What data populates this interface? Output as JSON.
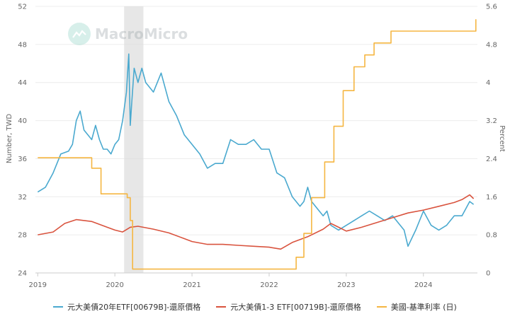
{
  "watermark": {
    "text": "MacroMicro"
  },
  "colors": {
    "etf_20y": "#4aa9cf",
    "etf_1_3y": "#d9533e",
    "fed_rate": "#f5b642",
    "shade": "#dddddd",
    "grid": "#ececec"
  },
  "chart_data": {
    "type": "line",
    "ylabel_left": "Number, TWD",
    "ylabel_right": "Percent",
    "ylim_left": [
      24,
      52
    ],
    "ylim_right": [
      0,
      5.6
    ],
    "yticks_left": [
      "24",
      "28",
      "32",
      "36",
      "40",
      "44",
      "48",
      "52"
    ],
    "yticks_right": [
      "0",
      "0.8",
      "1.6",
      "2.4",
      "3.2",
      "4",
      "4.8",
      "5.6"
    ],
    "xlim": [
      2018.97,
      2024.7
    ],
    "xticks": [
      {
        "label": "2019",
        "value": 2019
      },
      {
        "label": "2020",
        "value": 2020
      },
      {
        "label": "2021",
        "value": 2021
      },
      {
        "label": "2022",
        "value": 2022
      },
      {
        "label": "2023",
        "value": 2023
      },
      {
        "label": "2024",
        "value": 2024
      }
    ],
    "grid": "horizontal",
    "legend_position": "bottom",
    "shaded_region": [
      2020.12,
      2020.37
    ],
    "series": [
      {
        "name": "元大美債20年ETF[00679B]-還原價格",
        "axis": "left",
        "color": "#4aa9cf",
        "x": [
          2019.0,
          2019.1,
          2019.2,
          2019.3,
          2019.4,
          2019.45,
          2019.5,
          2019.55,
          2019.6,
          2019.65,
          2019.7,
          2019.75,
          2019.8,
          2019.85,
          2019.9,
          2019.95,
          2020.0,
          2020.05,
          2020.1,
          2020.15,
          2020.18,
          2020.2,
          2020.22,
          2020.25,
          2020.3,
          2020.35,
          2020.4,
          2020.5,
          2020.6,
          2020.7,
          2020.8,
          2020.9,
          2021.0,
          2021.1,
          2021.2,
          2021.3,
          2021.4,
          2021.5,
          2021.6,
          2021.7,
          2021.8,
          2021.9,
          2022.0,
          2022.1,
          2022.2,
          2022.3,
          2022.4,
          2022.45,
          2022.5,
          2022.55,
          2022.6,
          2022.7,
          2022.75,
          2022.8,
          2022.9,
          2023.0,
          2023.1,
          2023.2,
          2023.3,
          2023.4,
          2023.5,
          2023.6,
          2023.7,
          2023.75,
          2023.8,
          2023.9,
          2024.0,
          2024.1,
          2024.2,
          2024.3,
          2024.4,
          2024.5,
          2024.6,
          2024.65
        ],
        "y": [
          32.5,
          33.0,
          34.5,
          36.5,
          36.8,
          37.5,
          40.0,
          41.0,
          39.0,
          38.5,
          38.0,
          39.5,
          38.0,
          37.0,
          37.0,
          36.5,
          37.5,
          38.0,
          40.0,
          43.0,
          47.0,
          39.5,
          42.0,
          45.5,
          44.0,
          45.5,
          44.0,
          43.0,
          45.0,
          42.0,
          40.5,
          38.5,
          37.5,
          36.5,
          35.0,
          35.5,
          35.5,
          38.0,
          37.5,
          37.5,
          38.0,
          37.0,
          37.0,
          34.5,
          34.0,
          32.0,
          31.0,
          31.5,
          33.0,
          31.5,
          31.0,
          30.0,
          30.5,
          29.0,
          28.5,
          29.0,
          29.5,
          30.0,
          30.5,
          30.0,
          29.5,
          30.0,
          29.0,
          28.5,
          26.8,
          28.5,
          30.5,
          29.0,
          28.5,
          29.0,
          30.0,
          30.0,
          31.5,
          31.2
        ]
      },
      {
        "name": "元大美債1-3 ETF[00719B]-還原價格",
        "axis": "left",
        "color": "#d9533e",
        "x": [
          2019.0,
          2019.2,
          2019.35,
          2019.5,
          2019.7,
          2019.9,
          2020.0,
          2020.1,
          2020.2,
          2020.3,
          2020.5,
          2020.7,
          2020.9,
          2021.0,
          2021.2,
          2021.4,
          2021.6,
          2021.8,
          2022.0,
          2022.15,
          2022.3,
          2022.5,
          2022.7,
          2022.8,
          2022.9,
          2023.0,
          2023.2,
          2023.4,
          2023.6,
          2023.8,
          2024.0,
          2024.2,
          2024.4,
          2024.5,
          2024.6,
          2024.65
        ],
        "y": [
          28.0,
          28.3,
          29.2,
          29.6,
          29.4,
          28.8,
          28.5,
          28.3,
          28.8,
          28.9,
          28.6,
          28.2,
          27.6,
          27.3,
          27.0,
          27.0,
          26.9,
          26.8,
          26.7,
          26.5,
          27.2,
          27.8,
          28.6,
          29.2,
          28.8,
          28.4,
          28.8,
          29.3,
          29.8,
          30.3,
          30.6,
          31.0,
          31.4,
          31.7,
          32.2,
          31.8
        ]
      },
      {
        "name": "美國-基準利率 (日)",
        "axis": "right",
        "color": "#f5b642",
        "step": true,
        "x": [
          2019.0,
          2019.55,
          2019.7,
          2019.82,
          2020.16,
          2020.2,
          2020.23,
          2021.0,
          2022.2,
          2022.35,
          2022.45,
          2022.55,
          2022.72,
          2022.84,
          2022.96,
          2023.1,
          2023.24,
          2023.36,
          2023.58,
          2024.68
        ],
        "y": [
          2.42,
          2.42,
          2.2,
          1.66,
          1.58,
          1.1,
          0.08,
          0.08,
          0.08,
          0.33,
          0.83,
          1.58,
          2.33,
          3.08,
          3.83,
          4.33,
          4.58,
          4.83,
          5.08,
          5.33
        ]
      }
    ]
  }
}
